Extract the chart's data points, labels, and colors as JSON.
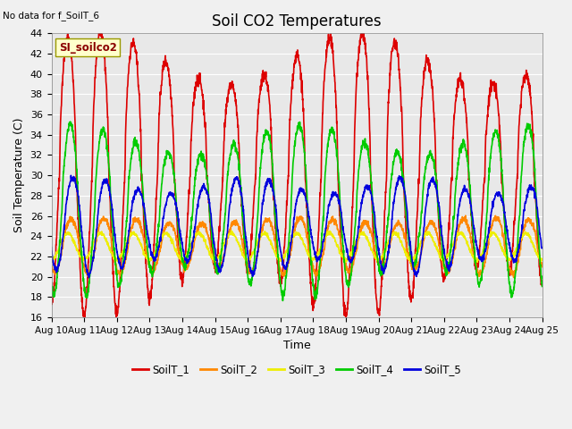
{
  "title": "Soil CO2 Temperatures",
  "xlabel": "Time",
  "ylabel": "Soil Temperature (C)",
  "no_data_text": "No data for f_SoilT_6",
  "site_label": "SI_soilco2",
  "ylim": [
    16,
    44
  ],
  "yticks": [
    16,
    18,
    20,
    22,
    24,
    26,
    28,
    30,
    32,
    34,
    36,
    38,
    40,
    42,
    44
  ],
  "xtick_labels": [
    "Aug 10",
    "Aug 11",
    "Aug 12",
    "Aug 13",
    "Aug 14",
    "Aug 15",
    "Aug 16",
    "Aug 17",
    "Aug 18",
    "Aug 19",
    "Aug 20",
    "Aug 21",
    "Aug 22",
    "Aug 23",
    "Aug 24",
    "Aug 25"
  ],
  "series": [
    {
      "name": "SoilT_1",
      "color": "#dd0000"
    },
    {
      "name": "SoilT_2",
      "color": "#ff8800"
    },
    {
      "name": "SoilT_3",
      "color": "#eeee00"
    },
    {
      "name": "SoilT_4",
      "color": "#00cc00"
    },
    {
      "name": "SoilT_5",
      "color": "#0000dd"
    }
  ],
  "background_color": "#f0f0f0",
  "plot_bg_color": "#e8e8e8",
  "grid_color": "#ffffff",
  "linewidth": 1.2,
  "figsize": [
    6.4,
    4.8
  ],
  "dpi": 100
}
